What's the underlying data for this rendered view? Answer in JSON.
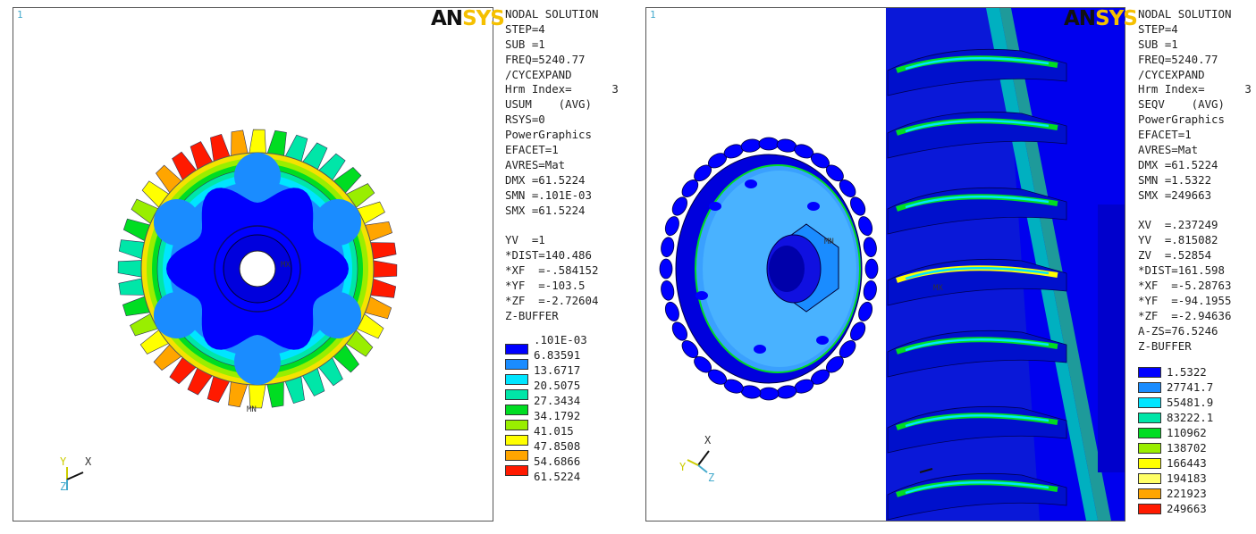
{
  "logo": {
    "an": "AN",
    "sys": "SYS"
  },
  "left": {
    "window_number": "1",
    "info_lines": [
      "NODAL SOLUTION",
      "STEP=4",
      "SUB =1",
      "FREQ=5240.77",
      "/CYCEXPAND",
      "Hrm Index=      3",
      "USUM    (AVG)",
      "RSYS=0",
      "PowerGraphics",
      "EFACET=1",
      "AVRES=Mat",
      "DMX =61.5224",
      "SMN =.101E-03",
      "SMX =61.5224",
      "",
      "YV  =1",
      "*DIST=140.486",
      "*XF  =-.584152",
      "*YF  =-103.5",
      "*ZF  =-2.72604",
      "Z-BUFFER"
    ],
    "legend_top": ".101E-03",
    "legend": [
      {
        "color": "#0000ff",
        "value": "6.83591"
      },
      {
        "color": "#1a8cff",
        "value": "13.6717"
      },
      {
        "color": "#00e5ff",
        "value": "20.5075"
      },
      {
        "color": "#00e6a8",
        "value": "27.3434"
      },
      {
        "color": "#00dd22",
        "value": "34.1792"
      },
      {
        "color": "#99ee00",
        "value": "41.015"
      },
      {
        "color": "#ffff00",
        "value": "47.8508"
      },
      {
        "color": "#ffa500",
        "value": "54.6866"
      },
      {
        "color": "#ff1a00",
        "value": "61.5224"
      }
    ],
    "axes": {
      "y": "Y",
      "x": "X",
      "z": "Z"
    },
    "mx_label": "MX",
    "mn_label": "MN"
  },
  "right": {
    "window_number": "1",
    "info_lines": [
      "NODAL SOLUTION",
      "STEP=4",
      "SUB =1",
      "FREQ=5240.77",
      "/CYCEXPAND",
      "Hrm Index=      3",
      "SEQV    (AVG)",
      "PowerGraphics",
      "EFACET=1",
      "AVRES=Mat",
      "DMX =61.5224",
      "SMN =1.5322",
      "SMX =249663",
      "",
      "XV  =.237249",
      "YV  =.815082",
      "ZV  =.52854",
      "*DIST=161.598",
      "*XF  =-5.28763",
      "*YF  =-94.1955",
      "*ZF  =-2.94636",
      "A-ZS=76.5246",
      "Z-BUFFER"
    ],
    "legend": [
      {
        "color": "#0000ff",
        "value": "1.5322"
      },
      {
        "color": "#1a8cff",
        "value": "27741.7"
      },
      {
        "color": "#00e5ff",
        "value": "55481.9"
      },
      {
        "color": "#00e6a8",
        "value": "83222.1"
      },
      {
        "color": "#00dd22",
        "value": "110962"
      },
      {
        "color": "#99ee00",
        "value": "138702"
      },
      {
        "color": "#ffff00",
        "value": "166443"
      },
      {
        "color": "#ffff66",
        "value": "194183"
      },
      {
        "color": "#ffa500",
        "value": "221923"
      },
      {
        "color": "#ff1a00",
        "value": "249663"
      }
    ],
    "axes": {
      "x": "X",
      "y": "Y",
      "z": "Z"
    },
    "mx_label": "MX",
    "mn_label": "MN"
  }
}
